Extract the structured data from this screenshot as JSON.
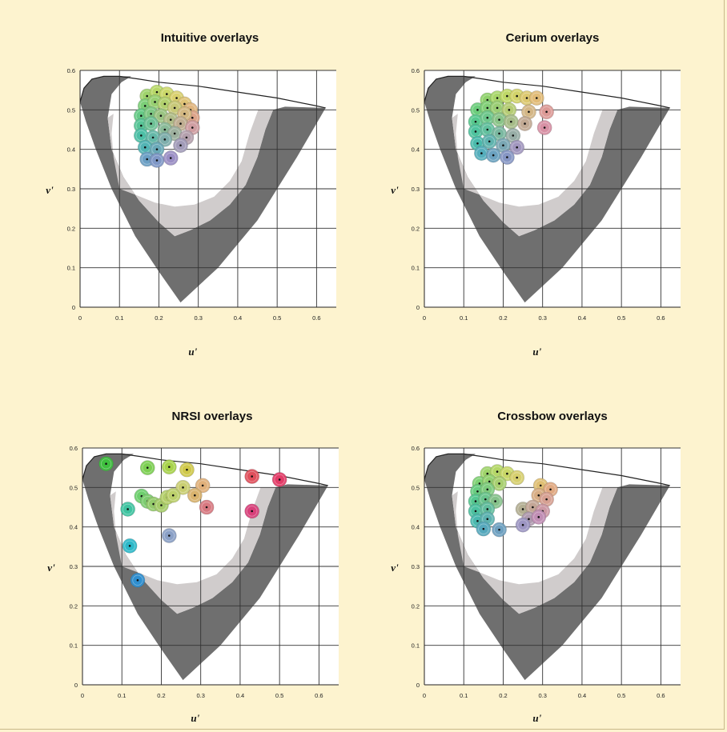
{
  "figure": {
    "background": "#fdf3cf"
  },
  "chart_data": [
    {
      "type": "scatter",
      "title": "Intuitive overlays",
      "xlabel": "u'",
      "ylabel": "v'",
      "xlim": [
        0,
        0.65
      ],
      "ylim": [
        0,
        0.6
      ],
      "xticks": [
        "0",
        "0.1",
        "0.2",
        "0.3",
        "0.4",
        "0.5",
        "0.6"
      ],
      "yticks": [
        "0",
        "0.1",
        "0.2",
        "0.3",
        "0.4",
        "0.5",
        "0.6"
      ],
      "grid": true,
      "points": [
        {
          "u": 0.17,
          "v": 0.535,
          "color": "#9fd36c"
        },
        {
          "u": 0.195,
          "v": 0.545,
          "color": "#b7d868"
        },
        {
          "u": 0.22,
          "v": 0.54,
          "color": "#cbd86a"
        },
        {
          "u": 0.245,
          "v": 0.53,
          "color": "#d9d06e"
        },
        {
          "u": 0.265,
          "v": 0.515,
          "color": "#dfc377"
        },
        {
          "u": 0.28,
          "v": 0.5,
          "color": "#e0b57e"
        },
        {
          "u": 0.285,
          "v": 0.48,
          "color": "#dda48a"
        },
        {
          "u": 0.165,
          "v": 0.51,
          "color": "#7ccf78"
        },
        {
          "u": 0.19,
          "v": 0.52,
          "color": "#98d072"
        },
        {
          "u": 0.215,
          "v": 0.515,
          "color": "#b2d06e"
        },
        {
          "u": 0.24,
          "v": 0.505,
          "color": "#c7c878"
        },
        {
          "u": 0.265,
          "v": 0.49,
          "color": "#d3b882"
        },
        {
          "u": 0.155,
          "v": 0.485,
          "color": "#66ca86"
        },
        {
          "u": 0.18,
          "v": 0.49,
          "color": "#7fc884"
        },
        {
          "u": 0.205,
          "v": 0.485,
          "color": "#9ac482"
        },
        {
          "u": 0.23,
          "v": 0.475,
          "color": "#b0bc88"
        },
        {
          "u": 0.255,
          "v": 0.465,
          "color": "#c0ae92"
        },
        {
          "u": 0.285,
          "v": 0.455,
          "color": "#cf9ea2"
        },
        {
          "u": 0.155,
          "v": 0.46,
          "color": "#58c597"
        },
        {
          "u": 0.18,
          "v": 0.465,
          "color": "#6ec196"
        },
        {
          "u": 0.215,
          "v": 0.45,
          "color": "#89ba98"
        },
        {
          "u": 0.24,
          "v": 0.44,
          "color": "#9db09e"
        },
        {
          "u": 0.27,
          "v": 0.43,
          "color": "#b4a0ad"
        },
        {
          "u": 0.155,
          "v": 0.435,
          "color": "#4dbfa6"
        },
        {
          "u": 0.185,
          "v": 0.43,
          "color": "#64b8a8"
        },
        {
          "u": 0.215,
          "v": 0.425,
          "color": "#7faeac"
        },
        {
          "u": 0.255,
          "v": 0.41,
          "color": "#a19bb8"
        },
        {
          "u": 0.165,
          "v": 0.405,
          "color": "#52b4b4"
        },
        {
          "u": 0.195,
          "v": 0.4,
          "color": "#6aa9b8"
        },
        {
          "u": 0.17,
          "v": 0.375,
          "color": "#6b9fc4"
        },
        {
          "u": 0.195,
          "v": 0.372,
          "color": "#7f97c6"
        },
        {
          "u": 0.23,
          "v": 0.378,
          "color": "#9a8ec4"
        }
      ]
    },
    {
      "type": "scatter",
      "title": "Cerium overlays",
      "xlabel": "u'",
      "ylabel": "v'",
      "xlim": [
        0,
        0.65
      ],
      "ylim": [
        0,
        0.6
      ],
      "xticks": [
        "0",
        "0.1",
        "0.2",
        "0.3",
        "0.4",
        "0.5",
        "0.6"
      ],
      "yticks": [
        "0",
        "0.1",
        "0.2",
        "0.3",
        "0.4",
        "0.5",
        "0.6"
      ],
      "grid": true,
      "points": [
        {
          "u": 0.16,
          "v": 0.525,
          "color": "#8fd16c"
        },
        {
          "u": 0.185,
          "v": 0.53,
          "color": "#a8d66a"
        },
        {
          "u": 0.21,
          "v": 0.535,
          "color": "#bfd868"
        },
        {
          "u": 0.235,
          "v": 0.535,
          "color": "#d2d36a"
        },
        {
          "u": 0.26,
          "v": 0.53,
          "color": "#dcc870"
        },
        {
          "u": 0.285,
          "v": 0.53,
          "color": "#e1bb78"
        },
        {
          "u": 0.135,
          "v": 0.5,
          "color": "#6ccd7c"
        },
        {
          "u": 0.16,
          "v": 0.505,
          "color": "#82cf78"
        },
        {
          "u": 0.185,
          "v": 0.505,
          "color": "#9acd74"
        },
        {
          "u": 0.215,
          "v": 0.5,
          "color": "#b5cc74"
        },
        {
          "u": 0.265,
          "v": 0.495,
          "color": "#d3b686"
        },
        {
          "u": 0.31,
          "v": 0.495,
          "color": "#dc9a96"
        },
        {
          "u": 0.13,
          "v": 0.47,
          "color": "#57c88e"
        },
        {
          "u": 0.16,
          "v": 0.48,
          "color": "#6ec78c"
        },
        {
          "u": 0.19,
          "v": 0.475,
          "color": "#8ac488"
        },
        {
          "u": 0.22,
          "v": 0.47,
          "color": "#a6bc88"
        },
        {
          "u": 0.255,
          "v": 0.465,
          "color": "#c2aa94"
        },
        {
          "u": 0.305,
          "v": 0.455,
          "color": "#d790a4"
        },
        {
          "u": 0.13,
          "v": 0.445,
          "color": "#4fc39e"
        },
        {
          "u": 0.16,
          "v": 0.45,
          "color": "#62c09e"
        },
        {
          "u": 0.19,
          "v": 0.44,
          "color": "#7ab8a0"
        },
        {
          "u": 0.225,
          "v": 0.435,
          "color": "#97ada6"
        },
        {
          "u": 0.135,
          "v": 0.415,
          "color": "#4abaac"
        },
        {
          "u": 0.165,
          "v": 0.42,
          "color": "#5fb3ae"
        },
        {
          "u": 0.2,
          "v": 0.41,
          "color": "#7aa7b4"
        },
        {
          "u": 0.235,
          "v": 0.405,
          "color": "#a196be"
        },
        {
          "u": 0.145,
          "v": 0.39,
          "color": "#55aebc"
        },
        {
          "u": 0.175,
          "v": 0.385,
          "color": "#6ba2c0"
        },
        {
          "u": 0.21,
          "v": 0.38,
          "color": "#8696c4"
        }
      ]
    },
    {
      "type": "scatter",
      "title": "NRSI overlays",
      "xlabel": "u'",
      "ylabel": "v'",
      "xlim": [
        0,
        0.65
      ],
      "ylim": [
        0,
        0.6
      ],
      "xticks": [
        "0",
        "0.1",
        "0.2",
        "0.3",
        "0.4",
        "0.5",
        "0.6"
      ],
      "yticks": [
        "0",
        "0.1",
        "0.2",
        "0.3",
        "0.4",
        "0.5",
        "0.6"
      ],
      "grid": true,
      "points": [
        {
          "u": 0.06,
          "v": 0.56,
          "color": "#3fbf3f"
        },
        {
          "u": 0.165,
          "v": 0.55,
          "color": "#7ccf52"
        },
        {
          "u": 0.22,
          "v": 0.552,
          "color": "#a7d24a"
        },
        {
          "u": 0.265,
          "v": 0.545,
          "color": "#cfc84a"
        },
        {
          "u": 0.43,
          "v": 0.528,
          "color": "#e0505c"
        },
        {
          "u": 0.5,
          "v": 0.52,
          "color": "#e23c68"
        },
        {
          "u": 0.255,
          "v": 0.5,
          "color": "#c9ce72"
        },
        {
          "u": 0.305,
          "v": 0.505,
          "color": "#e0b07a"
        },
        {
          "u": 0.285,
          "v": 0.48,
          "color": "#d9b36e"
        },
        {
          "u": 0.15,
          "v": 0.478,
          "color": "#6dcf6d"
        },
        {
          "u": 0.165,
          "v": 0.465,
          "color": "#7dcc70"
        },
        {
          "u": 0.18,
          "v": 0.458,
          "color": "#94cb6c"
        },
        {
          "u": 0.2,
          "v": 0.455,
          "color": "#a5cc6a"
        },
        {
          "u": 0.215,
          "v": 0.475,
          "color": "#b4cf6a"
        },
        {
          "u": 0.23,
          "v": 0.48,
          "color": "#bcd06c"
        },
        {
          "u": 0.115,
          "v": 0.445,
          "color": "#3fc3a0"
        },
        {
          "u": 0.315,
          "v": 0.45,
          "color": "#d77880"
        },
        {
          "u": 0.43,
          "v": 0.44,
          "color": "#d8407a"
        },
        {
          "u": 0.22,
          "v": 0.378,
          "color": "#8aa0c6"
        },
        {
          "u": 0.12,
          "v": 0.352,
          "color": "#2cb8c8"
        },
        {
          "u": 0.14,
          "v": 0.265,
          "color": "#2f8fd0"
        }
      ]
    },
    {
      "type": "scatter",
      "title": "Crossbow overlays",
      "xlabel": "u'",
      "ylabel": "v'",
      "xlim": [
        0,
        0.65
      ],
      "ylim": [
        0,
        0.6
      ],
      "xticks": [
        "0",
        "0.1",
        "0.2",
        "0.3",
        "0.4",
        "0.5",
        "0.6"
      ],
      "yticks": [
        "0",
        "0.1",
        "0.2",
        "0.3",
        "0.4",
        "0.5",
        "0.6"
      ],
      "grid": true,
      "points": [
        {
          "u": 0.16,
          "v": 0.535,
          "color": "#9fd46a"
        },
        {
          "u": 0.185,
          "v": 0.54,
          "color": "#b4d768"
        },
        {
          "u": 0.21,
          "v": 0.535,
          "color": "#c8d768"
        },
        {
          "u": 0.235,
          "v": 0.525,
          "color": "#d6cf6e"
        },
        {
          "u": 0.14,
          "v": 0.51,
          "color": "#7fd174"
        },
        {
          "u": 0.165,
          "v": 0.515,
          "color": "#93d170"
        },
        {
          "u": 0.19,
          "v": 0.51,
          "color": "#a8cf70"
        },
        {
          "u": 0.135,
          "v": 0.49,
          "color": "#68cc80"
        },
        {
          "u": 0.16,
          "v": 0.495,
          "color": "#7ecb7e"
        },
        {
          "u": 0.295,
          "v": 0.505,
          "color": "#dfbf74"
        },
        {
          "u": 0.32,
          "v": 0.495,
          "color": "#e0a982"
        },
        {
          "u": 0.13,
          "v": 0.465,
          "color": "#55c790"
        },
        {
          "u": 0.155,
          "v": 0.47,
          "color": "#6ac48e"
        },
        {
          "u": 0.18,
          "v": 0.465,
          "color": "#85c18a"
        },
        {
          "u": 0.29,
          "v": 0.48,
          "color": "#d7ad84"
        },
        {
          "u": 0.31,
          "v": 0.47,
          "color": "#d6a092"
        },
        {
          "u": 0.13,
          "v": 0.44,
          "color": "#4dc1a0"
        },
        {
          "u": 0.16,
          "v": 0.445,
          "color": "#62bd9e"
        },
        {
          "u": 0.25,
          "v": 0.445,
          "color": "#b3ae92"
        },
        {
          "u": 0.275,
          "v": 0.45,
          "color": "#c3a696"
        },
        {
          "u": 0.3,
          "v": 0.44,
          "color": "#cc98a4"
        },
        {
          "u": 0.135,
          "v": 0.415,
          "color": "#4ab8ae"
        },
        {
          "u": 0.16,
          "v": 0.42,
          "color": "#5db2b0"
        },
        {
          "u": 0.265,
          "v": 0.42,
          "color": "#b09bb0"
        },
        {
          "u": 0.29,
          "v": 0.425,
          "color": "#c08eb4"
        },
        {
          "u": 0.15,
          "v": 0.395,
          "color": "#56a8bc"
        },
        {
          "u": 0.19,
          "v": 0.393,
          "color": "#6ea0c0"
        },
        {
          "u": 0.25,
          "v": 0.405,
          "color": "#9c95c2"
        }
      ]
    }
  ]
}
